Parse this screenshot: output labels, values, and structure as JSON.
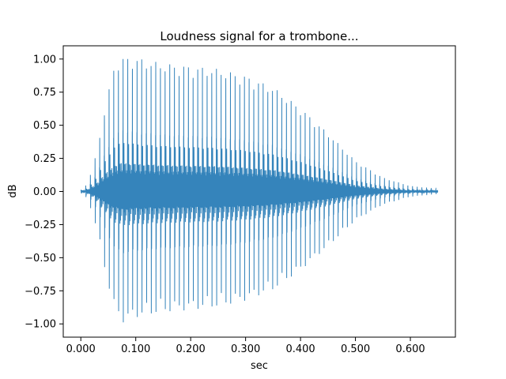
{
  "chart_data": {
    "type": "line",
    "title": "Loudness signal for a trombone...",
    "xlabel": "sec",
    "ylabel": "dB",
    "xlim": [
      -0.032,
      0.682
    ],
    "ylim": [
      -1.1,
      1.1
    ],
    "xticks": [
      0.0,
      0.1,
      0.2,
      0.3,
      0.4,
      0.5,
      0.6
    ],
    "xtick_labels": [
      "0.000",
      "0.100",
      "0.200",
      "0.300",
      "0.400",
      "0.500",
      "0.600"
    ],
    "yticks": [
      -1.0,
      -0.75,
      -0.5,
      -0.25,
      0.0,
      0.25,
      0.5,
      0.75,
      1.0
    ],
    "ytick_labels": [
      "−1.00",
      "−0.75",
      "−0.50",
      "−0.25",
      "0.00",
      "0.25",
      "0.50",
      "0.75",
      "1.00"
    ],
    "grid": false,
    "series": [
      {
        "color": "#1f77b4",
        "duration": 0.65,
        "pitch_period": 0.0085,
        "envelope": {
          "t": [
            0.0,
            0.01,
            0.02,
            0.03,
            0.04,
            0.06,
            0.075,
            0.1,
            0.15,
            0.2,
            0.25,
            0.3,
            0.35,
            0.4,
            0.45,
            0.5,
            0.55,
            0.6,
            0.65
          ],
          "peak": [
            0.01,
            0.05,
            0.15,
            0.3,
            0.53,
            0.89,
            1.0,
            0.96,
            0.92,
            0.9,
            0.88,
            0.83,
            0.75,
            0.6,
            0.42,
            0.22,
            0.1,
            0.04,
            0.02
          ]
        }
      }
    ]
  }
}
